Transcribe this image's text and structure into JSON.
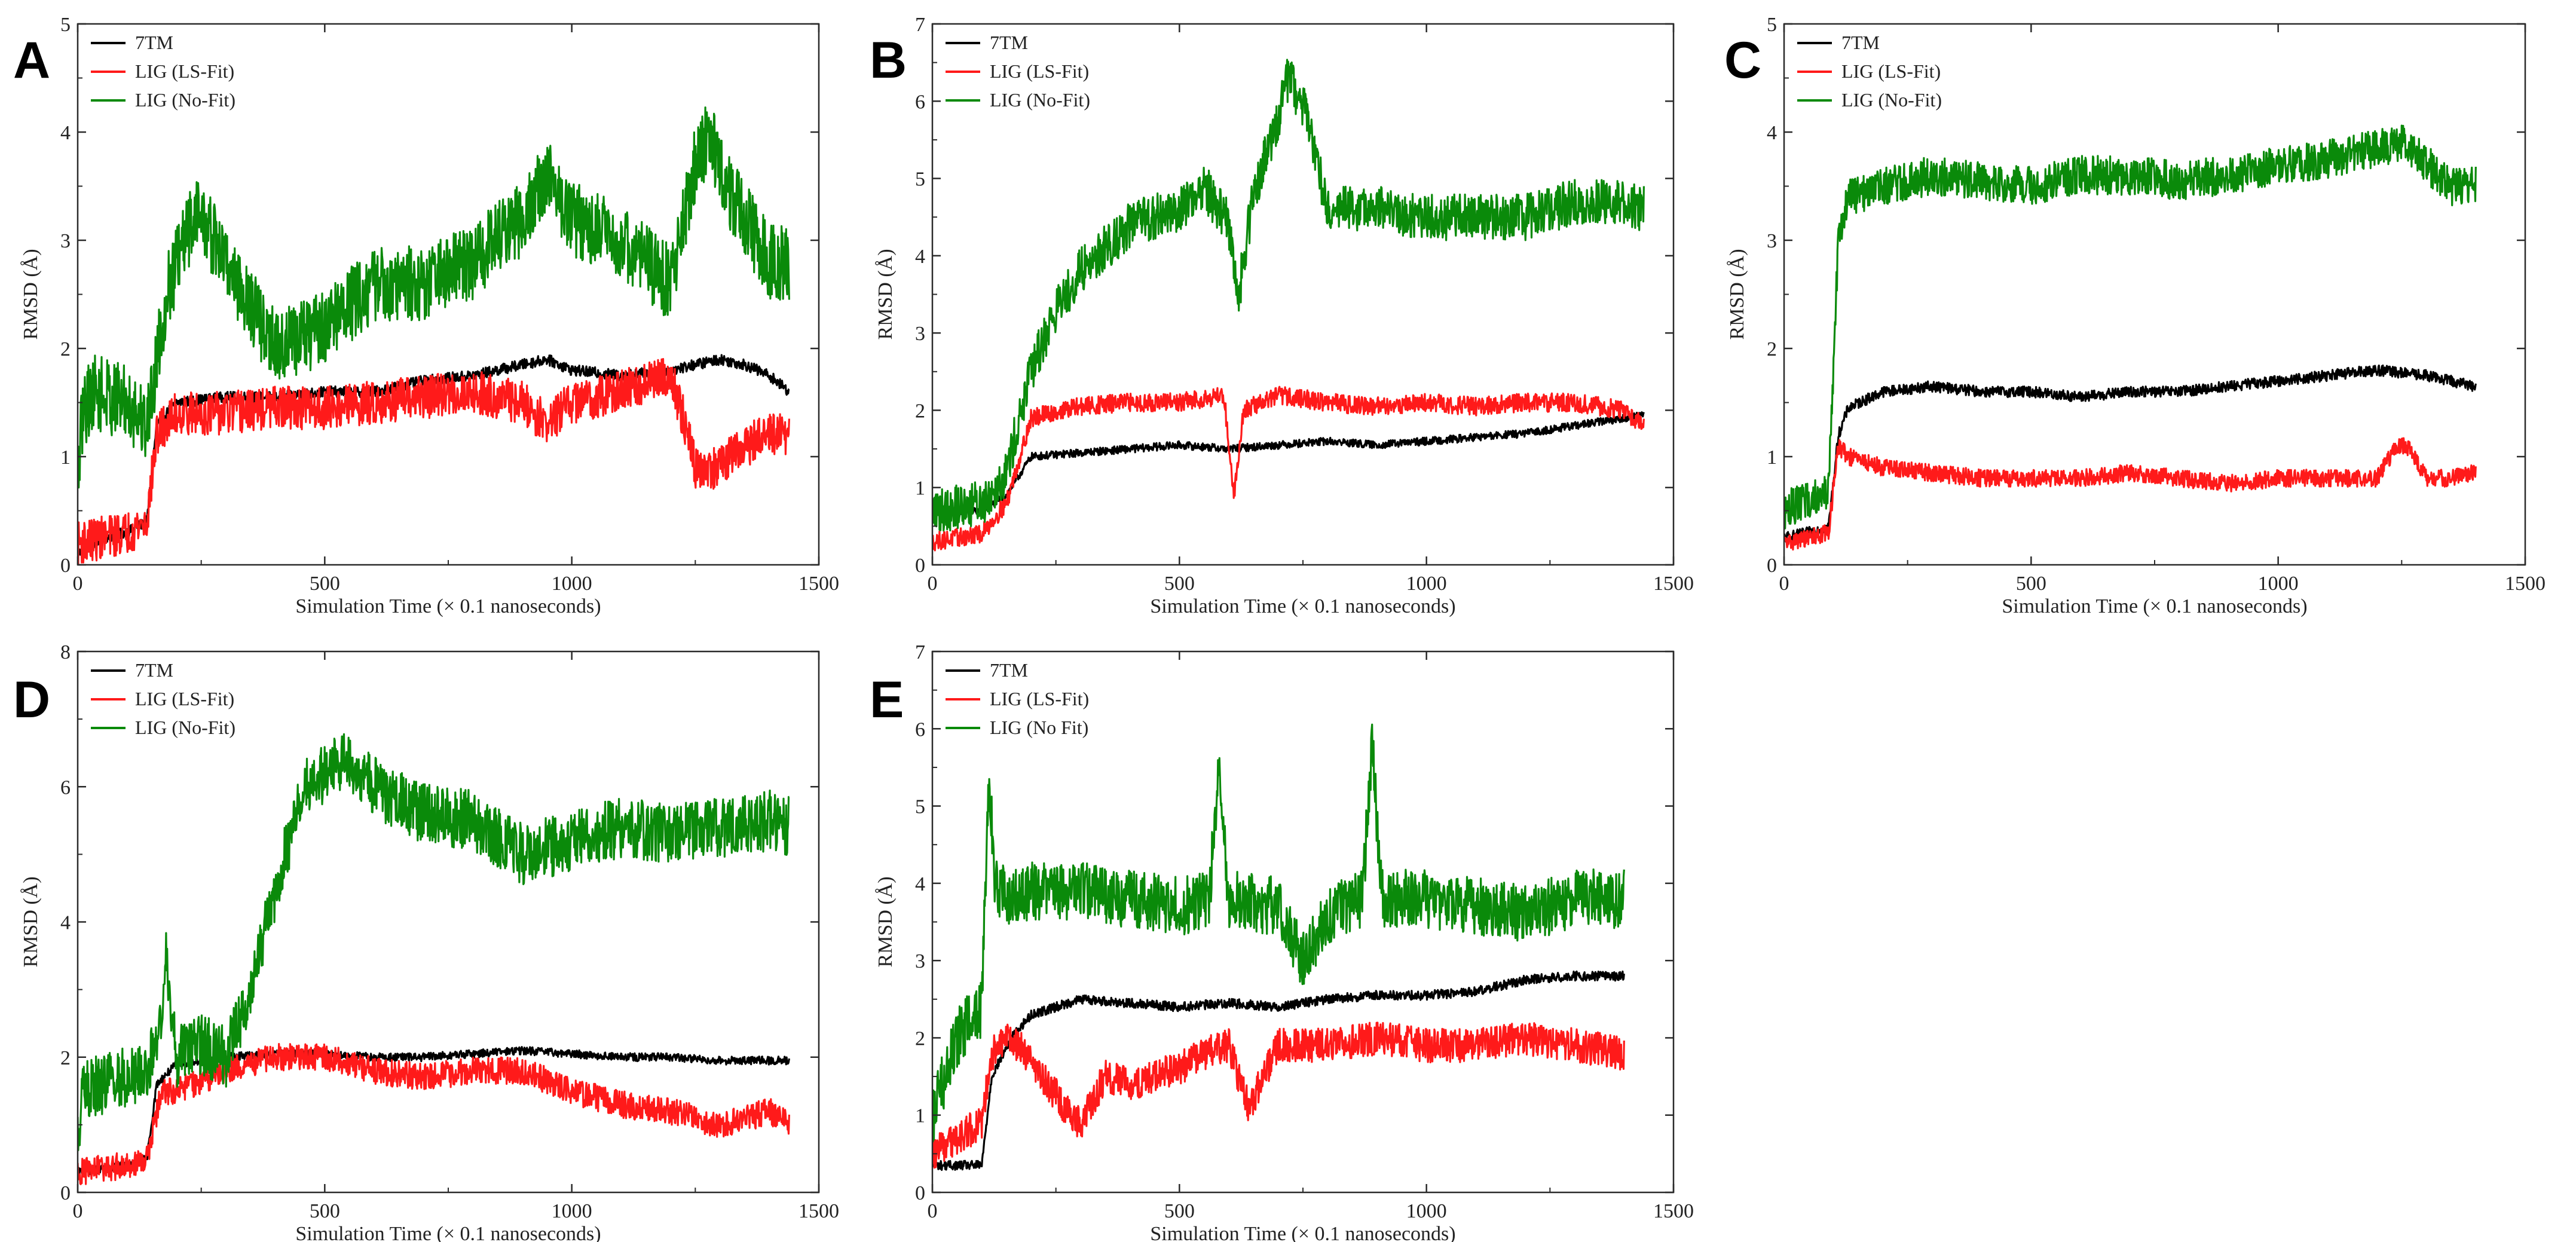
{
  "colors": {
    "7TM": "#000000",
    "LS": "#ff1a1a",
    "NoFit": "#0a8a0a",
    "frame": "#2a2a2a",
    "tick_text": "#222222"
  },
  "chart_data": [
    {
      "panel": "A",
      "type": "line",
      "xlabel": "Simulation Time (× 0.1 nanoseconds)",
      "ylabel": "RMSD (Å)",
      "xlim": [
        0,
        1500
      ],
      "ylim": [
        0,
        5
      ],
      "xticks": [
        0,
        500,
        1000,
        1500
      ],
      "yticks": [
        0,
        1,
        2,
        3,
        4,
        5
      ],
      "legend": [
        "7TM",
        "LIG (LS-Fit)",
        "LIG (No-Fit)"
      ],
      "series": [
        {
          "name": "7TM",
          "color": "#000000",
          "x": [
            0,
            50,
            100,
            140,
            160,
            200,
            300,
            400,
            500,
            600,
            700,
            800,
            900,
            950,
            1000,
            1100,
            1200,
            1250,
            1300,
            1350,
            1400,
            1440
          ],
          "y": [
            0.1,
            0.25,
            0.3,
            0.4,
            1.3,
            1.5,
            1.55,
            1.55,
            1.6,
            1.6,
            1.7,
            1.75,
            1.85,
            1.9,
            1.8,
            1.75,
            1.8,
            1.85,
            1.9,
            1.85,
            1.75,
            1.6
          ],
          "noise": 0.05
        },
        {
          "name": "LIG (LS-Fit)",
          "color": "#ff1a1a",
          "x": [
            0,
            50,
            100,
            140,
            160,
            200,
            300,
            400,
            500,
            600,
            700,
            800,
            900,
            950,
            1000,
            1100,
            1200,
            1230,
            1250,
            1300,
            1350,
            1400,
            1440
          ],
          "y": [
            0.2,
            0.25,
            0.3,
            0.4,
            1.2,
            1.4,
            1.4,
            1.45,
            1.45,
            1.5,
            1.55,
            1.6,
            1.5,
            1.3,
            1.5,
            1.6,
            1.75,
            1.3,
            0.9,
            0.9,
            1.1,
            1.2,
            1.2
          ],
          "noise": 0.2
        },
        {
          "name": "LIG (No-Fit)",
          "color": "#0a8a0a",
          "x": [
            0,
            10,
            30,
            100,
            140,
            180,
            240,
            300,
            400,
            500,
            600,
            700,
            800,
            900,
            950,
            1000,
            1100,
            1200,
            1250,
            1280,
            1300,
            1350,
            1400,
            1440
          ],
          "y": [
            0.8,
            1.4,
            1.6,
            1.5,
            1.3,
            2.5,
            3.3,
            2.8,
            2.0,
            2.2,
            2.6,
            2.6,
            2.8,
            3.2,
            3.6,
            3.2,
            3.0,
            2.6,
            3.7,
            4.0,
            3.6,
            3.2,
            2.8,
            2.8
          ],
          "noise": 0.35
        }
      ]
    },
    {
      "panel": "B",
      "type": "line",
      "xlabel": "Simulation Time (× 0.1 nanoseconds)",
      "ylabel": "RMSD (Å)",
      "xlim": [
        0,
        1500
      ],
      "ylim": [
        0,
        7
      ],
      "xticks": [
        0,
        500,
        1000,
        1500
      ],
      "yticks": [
        0,
        1,
        2,
        3,
        4,
        5,
        6,
        7
      ],
      "legend": [
        "7TM",
        "LIG (LS-Fit)",
        "LIG (No-Fit)"
      ],
      "series": [
        {
          "name": "7TM",
          "color": "#000000",
          "x": [
            0,
            50,
            100,
            150,
            200,
            300,
            400,
            500,
            600,
            700,
            800,
            900,
            1000,
            1100,
            1200,
            1300,
            1400,
            1440
          ],
          "y": [
            0.7,
            0.7,
            0.7,
            0.9,
            1.4,
            1.45,
            1.5,
            1.55,
            1.5,
            1.55,
            1.6,
            1.55,
            1.6,
            1.65,
            1.7,
            1.8,
            1.9,
            1.95
          ],
          "noise": 0.05
        },
        {
          "name": "LIG (LS-Fit)",
          "color": "#ff1a1a",
          "x": [
            0,
            50,
            100,
            150,
            200,
            300,
            400,
            500,
            590,
            610,
            630,
            700,
            800,
            900,
            1000,
            1100,
            1200,
            1300,
            1400,
            1440
          ],
          "y": [
            0.3,
            0.35,
            0.4,
            0.8,
            1.9,
            2.05,
            2.1,
            2.1,
            2.2,
            0.9,
            2.0,
            2.2,
            2.1,
            2.05,
            2.1,
            2.05,
            2.1,
            2.1,
            2.0,
            1.8
          ],
          "noise": 0.12
        },
        {
          "name": "LIG (No-Fit)",
          "color": "#0a8a0a",
          "x": [
            0,
            50,
            100,
            150,
            200,
            250,
            300,
            400,
            500,
            550,
            600,
            620,
            650,
            700,
            720,
            760,
            800,
            900,
            1000,
            1100,
            1200,
            1300,
            1400,
            1440
          ],
          "y": [
            0.7,
            0.75,
            0.8,
            1.2,
            2.5,
            3.3,
            3.8,
            4.4,
            4.6,
            4.9,
            4.4,
            3.5,
            4.8,
            5.8,
            6.3,
            5.8,
            4.6,
            4.6,
            4.5,
            4.5,
            4.5,
            4.7,
            4.7,
            4.6
          ],
          "noise": 0.3
        }
      ]
    },
    {
      "panel": "C",
      "type": "line",
      "xlabel": "Simulation Time (× 0.1 nanoseconds)",
      "ylabel": "RMSD (Å)",
      "xlim": [
        0,
        1500
      ],
      "ylim": [
        0,
        5
      ],
      "xticks": [
        0,
        500,
        1000,
        1500
      ],
      "yticks": [
        0,
        1,
        2,
        3,
        4,
        5
      ],
      "legend": [
        "7TM",
        "LIG (LS-Fit)",
        "LIG (No-Fit)"
      ],
      "series": [
        {
          "name": "7TM",
          "color": "#000000",
          "x": [
            0,
            50,
            90,
            110,
            130,
            200,
            300,
            400,
            500,
            600,
            700,
            800,
            900,
            1000,
            1100,
            1200,
            1300,
            1400
          ],
          "y": [
            0.25,
            0.3,
            0.35,
            1.2,
            1.45,
            1.6,
            1.65,
            1.6,
            1.6,
            1.55,
            1.6,
            1.6,
            1.65,
            1.7,
            1.75,
            1.8,
            1.75,
            1.65
          ],
          "noise": 0.05
        },
        {
          "name": "LIG (LS-Fit)",
          "color": "#ff1a1a",
          "x": [
            0,
            50,
            90,
            110,
            130,
            200,
            300,
            400,
            500,
            600,
            700,
            800,
            900,
            1000,
            1100,
            1200,
            1240,
            1260,
            1300,
            1350,
            1400
          ],
          "y": [
            0.2,
            0.25,
            0.3,
            1.1,
            1.0,
            0.9,
            0.85,
            0.8,
            0.8,
            0.8,
            0.85,
            0.8,
            0.75,
            0.8,
            0.8,
            0.8,
            1.1,
            1.1,
            0.8,
            0.8,
            0.85
          ],
          "noise": 0.08
        },
        {
          "name": "LIG (No-Fit)",
          "color": "#0a8a0a",
          "x": [
            0,
            50,
            90,
            110,
            130,
            200,
            300,
            400,
            500,
            600,
            700,
            800,
            900,
            1000,
            1100,
            1200,
            1250,
            1300,
            1350,
            1400
          ],
          "y": [
            0.5,
            0.6,
            0.7,
            3.0,
            3.4,
            3.5,
            3.6,
            3.55,
            3.5,
            3.6,
            3.6,
            3.55,
            3.6,
            3.7,
            3.75,
            3.85,
            3.9,
            3.7,
            3.5,
            3.5
          ],
          "noise": 0.18
        }
      ]
    },
    {
      "panel": "D",
      "type": "line",
      "xlabel": "Simulation Time (× 0.1 nanoseconds)",
      "ylabel": "RMSD (Å)",
      "xlim": [
        0,
        1500
      ],
      "ylim": [
        0,
        8
      ],
      "xticks": [
        0,
        500,
        1000,
        1500
      ],
      "yticks": [
        0,
        2,
        4,
        6,
        8
      ],
      "legend": [
        "7TM",
        "LIG (LS-Fit)",
        "LIG (No-Fit)"
      ],
      "series": [
        {
          "name": "7TM",
          "color": "#000000",
          "x": [
            0,
            50,
            100,
            140,
            160,
            200,
            300,
            400,
            500,
            600,
            700,
            800,
            900,
            1000,
            1100,
            1200,
            1300,
            1400,
            1440
          ],
          "y": [
            0.3,
            0.35,
            0.4,
            0.5,
            1.6,
            1.9,
            2.0,
            2.05,
            2.05,
            2.0,
            2.0,
            2.05,
            2.1,
            2.05,
            2.0,
            2.0,
            1.95,
            1.95,
            1.95
          ],
          "noise": 0.06
        },
        {
          "name": "LIG (LS-Fit)",
          "color": "#ff1a1a",
          "x": [
            0,
            50,
            100,
            140,
            170,
            200,
            300,
            400,
            500,
            600,
            700,
            800,
            900,
            1000,
            1100,
            1200,
            1300,
            1400,
            1440
          ],
          "y": [
            0.3,
            0.35,
            0.4,
            0.5,
            1.5,
            1.5,
            1.8,
            2.0,
            2.0,
            1.8,
            1.7,
            1.8,
            1.8,
            1.5,
            1.3,
            1.2,
            1.0,
            1.2,
            1.0
          ],
          "noise": 0.2
        },
        {
          "name": "LIG (No-Fit)",
          "color": "#0a8a0a",
          "x": [
            0,
            10,
            50,
            100,
            140,
            170,
            180,
            200,
            250,
            300,
            350,
            400,
            460,
            500,
            550,
            600,
            650,
            700,
            800,
            900,
            1000,
            1100,
            1200,
            1300,
            1400,
            1440
          ],
          "y": [
            0.8,
            1.5,
            1.6,
            1.7,
            1.8,
            2.5,
            3.5,
            2.0,
            2.2,
            2.0,
            3.0,
            4.5,
            6.0,
            6.2,
            6.4,
            6.0,
            5.8,
            5.6,
            5.5,
            5.0,
            5.2,
            5.4,
            5.3,
            5.4,
            5.5,
            5.4
          ],
          "noise": 0.45
        }
      ]
    },
    {
      "panel": "E",
      "type": "line",
      "xlabel": "Simulation Time (× 0.1 nanoseconds)",
      "ylabel": "RMSD (Å)",
      "xlim": [
        0,
        1500
      ],
      "ylim": [
        0,
        7
      ],
      "xticks": [
        0,
        500,
        1000,
        1500
      ],
      "yticks": [
        0,
        1,
        2,
        3,
        4,
        5,
        6,
        7
      ],
      "legend": [
        "7TM",
        "LIG (LS-Fit)",
        "LIG (No Fit)"
      ],
      "series": [
        {
          "name": "7TM",
          "color": "#000000",
          "x": [
            0,
            50,
            100,
            120,
            160,
            200,
            300,
            400,
            500,
            600,
            700,
            800,
            900,
            1000,
            1100,
            1200,
            1300,
            1400
          ],
          "y": [
            0.35,
            0.35,
            0.35,
            1.5,
            2.0,
            2.3,
            2.5,
            2.45,
            2.4,
            2.45,
            2.4,
            2.5,
            2.55,
            2.55,
            2.6,
            2.75,
            2.8,
            2.8
          ],
          "noise": 0.06
        },
        {
          "name": "LIG (LS-Fit)",
          "color": "#ff1a1a",
          "x": [
            0,
            50,
            100,
            120,
            160,
            200,
            280,
            300,
            350,
            400,
            500,
            550,
            600,
            640,
            700,
            750,
            800,
            900,
            1000,
            1100,
            1200,
            1300,
            1400
          ],
          "y": [
            0.5,
            0.7,
            0.9,
            1.8,
            2.0,
            1.7,
            1.0,
            0.9,
            1.5,
            1.4,
            1.6,
            1.8,
            1.9,
            1.1,
            1.9,
            1.9,
            1.9,
            2.0,
            1.9,
            1.9,
            2.0,
            1.9,
            1.8
          ],
          "noise": 0.22
        },
        {
          "name": "LIG (No Fit)",
          "color": "#0a8a0a",
          "x": [
            0,
            50,
            100,
            115,
            125,
            150,
            200,
            300,
            400,
            500,
            560,
            580,
            600,
            700,
            750,
            800,
            870,
            890,
            910,
            1000,
            1100,
            1200,
            1300,
            1400
          ],
          "y": [
            1.0,
            2.0,
            2.4,
            5.5,
            4.0,
            3.8,
            3.9,
            3.9,
            3.8,
            3.7,
            3.8,
            5.5,
            3.8,
            3.7,
            3.0,
            3.6,
            3.8,
            5.8,
            3.8,
            3.8,
            3.7,
            3.6,
            3.8,
            3.8
          ],
          "noise": 0.38
        }
      ]
    }
  ]
}
